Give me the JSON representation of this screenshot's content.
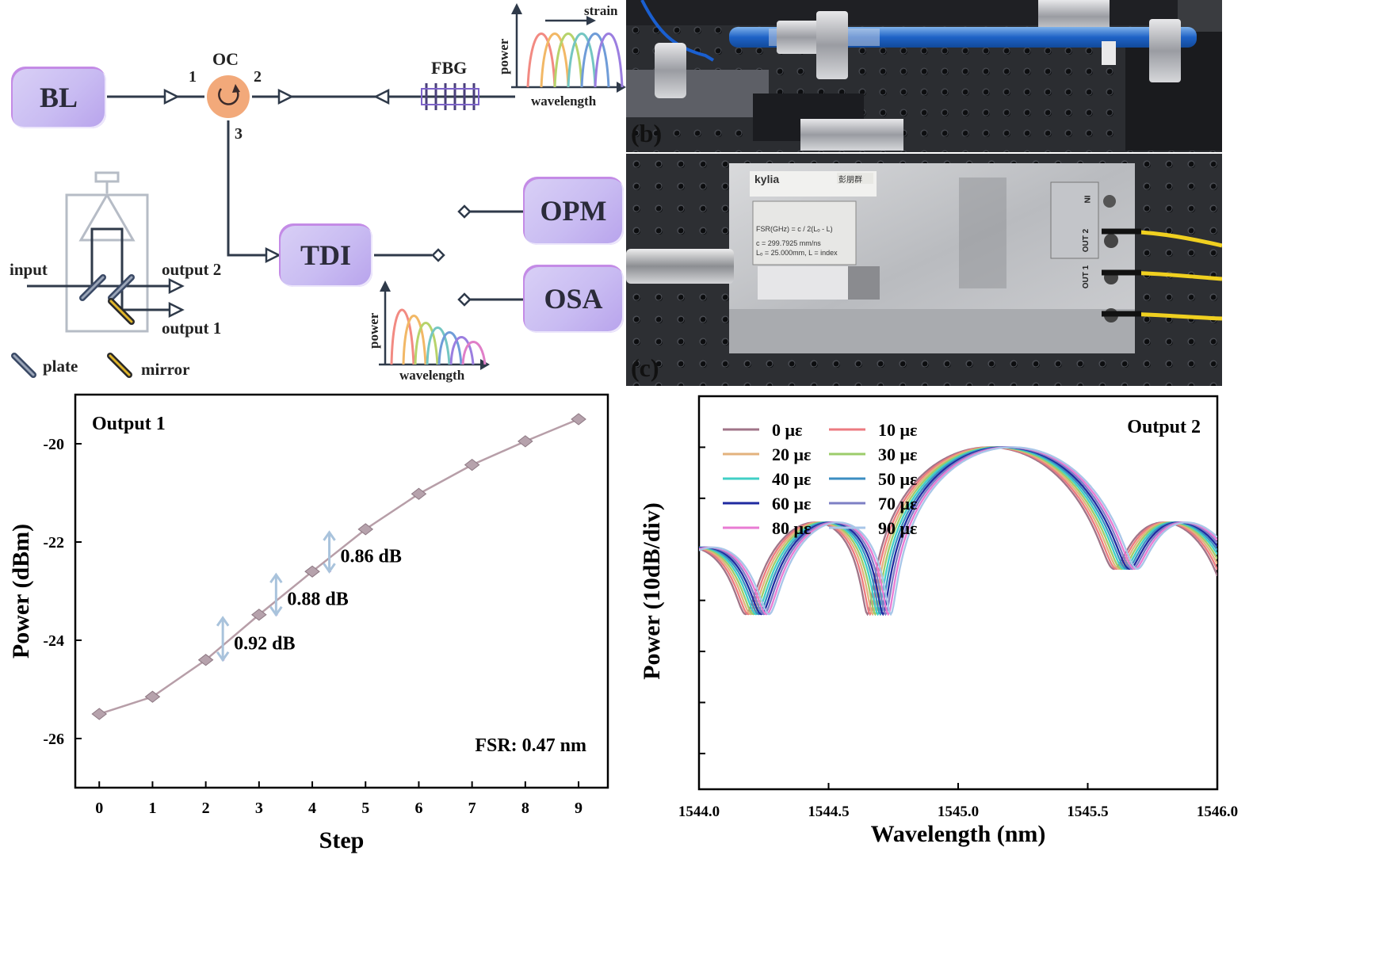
{
  "setup": {
    "blocks": {
      "bl": "BL",
      "tdi": "TDI",
      "opm": "OPM",
      "osa": "OSA"
    },
    "oc_label": "OC",
    "fbg_label": "FBG",
    "ports": {
      "p1": "1",
      "p2": "2",
      "p3": "3"
    },
    "tdi_detail": {
      "input": "input",
      "output1": "output 1",
      "output2": "output 2",
      "plate": "plate",
      "mirror": "mirror"
    },
    "inset_fbg": {
      "ylabel": "power",
      "xlabel": "wavelength",
      "arrow_label": "strain"
    },
    "inset_out": {
      "ylabel": "power",
      "xlabel": "wavelength"
    },
    "colors": {
      "box_fill": "#c9bcf2",
      "box_edge": "#c48be6",
      "line": "#2f3a4a",
      "oc": "#f0a070",
      "plate": "#3b4a66",
      "mirror": "#e0b52a"
    }
  },
  "photos": {
    "b_label": "(b)",
    "c_label": "(c)",
    "device": {
      "brand": "kylia",
      "handwritten": "彭朋群",
      "formula": "FSR(GHz) = c / 2(Lₒ - L)",
      "c_value": "c = 299.7925 mm/ns",
      "l_values": "Lₒ = 25.000mm, L = index",
      "ports": [
        "IN",
        "OUT 2",
        "OUT 1"
      ]
    }
  },
  "chart_data": [
    {
      "type": "line",
      "panel_label": "Output 1",
      "xlabel": "Step",
      "ylabel": "Power (dBm)",
      "x": [
        0,
        1,
        2,
        3,
        4,
        5,
        6,
        7,
        8,
        9
      ],
      "y": [
        -25.5,
        -25.15,
        -24.4,
        -23.48,
        -22.6,
        -21.74,
        -21.02,
        -20.43,
        -19.95,
        -19.5
      ],
      "xlim": [
        -0.45,
        9.55
      ],
      "ylim": [
        -27,
        -19
      ],
      "xticks": [
        0,
        1,
        2,
        3,
        4,
        5,
        6,
        7,
        8,
        9
      ],
      "yticks": [
        -20,
        -22,
        -24,
        -26
      ],
      "annotations": [
        {
          "text": "0.86 dB",
          "from_step": 4,
          "to_step": 5
        },
        {
          "text": "0.88 dB",
          "from_step": 3,
          "to_step": 4
        },
        {
          "text": "0.92 dB",
          "from_step": 2,
          "to_step": 3
        }
      ],
      "note": "FSR: 0.47 nm",
      "color": "#b79ea8",
      "marker_color": "#b6a2ac",
      "annot_color": "#a9c3dc",
      "dash_color": "#9b3fb0"
    },
    {
      "type": "line",
      "panel_label": "Output 2",
      "xlabel": "Wavelength (nm)",
      "ylabel": "Power (10dB/div)",
      "xlim": [
        1544.0,
        1546.0
      ],
      "xticks": [
        1544.0,
        1544.5,
        1545.0,
        1545.5,
        1546.0
      ],
      "xtick_labels": [
        "1544.0",
        "1544.5",
        "1545.0",
        "1545.5",
        "1546.0"
      ],
      "ylim": [
        -87,
        -10
      ],
      "ydiv": 10,
      "series": [
        {
          "name": "0 με",
          "shift": 0.0,
          "color": "#a07488"
        },
        {
          "name": "10 με",
          "shift": 0.01,
          "color": "#ec7a80"
        },
        {
          "name": "20 με",
          "shift": 0.02,
          "color": "#e3b27d"
        },
        {
          "name": "30 με",
          "shift": 0.03,
          "color": "#9ccd6b"
        },
        {
          "name": "40 με",
          "shift": 0.04,
          "color": "#40cfc6"
        },
        {
          "name": "50 με",
          "shift": 0.05,
          "color": "#3b8ec2"
        },
        {
          "name": "60 με",
          "shift": 0.06,
          "color": "#1f2aa0"
        },
        {
          "name": "70 με",
          "shift": 0.07,
          "color": "#7d7fc4"
        },
        {
          "name": "80 με",
          "shift": 0.08,
          "color": "#e97bd3"
        },
        {
          "name": "90 με",
          "shift": 0.09,
          "color": "#a8c6e8"
        }
      ]
    }
  ]
}
